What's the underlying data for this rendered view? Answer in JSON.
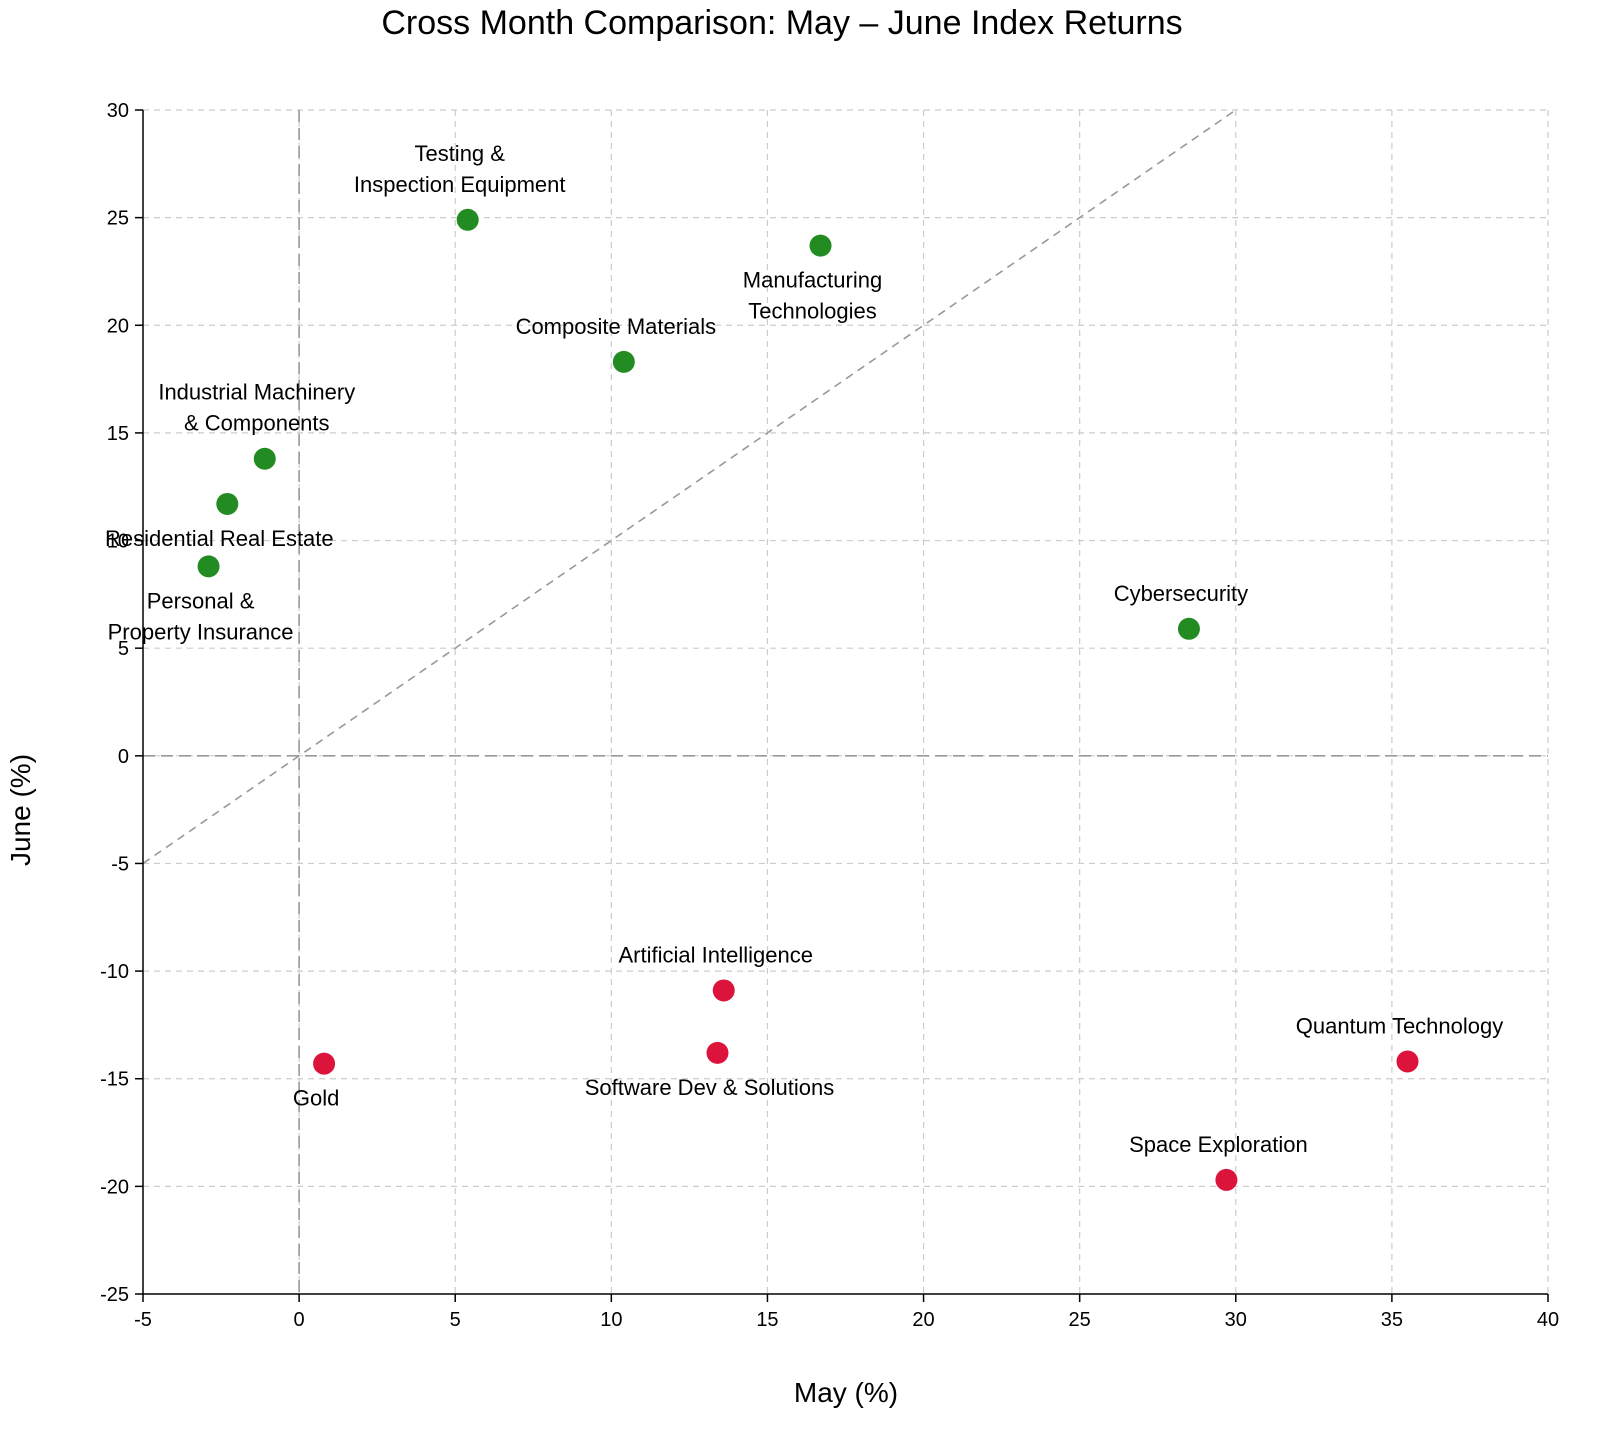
{
  "chart_data": {
    "type": "scatter",
    "title": "Cross Month Comparison: May – June Index Returns",
    "xlabel": "May (%)",
    "ylabel": "June (%)",
    "xlim": [
      -5,
      40
    ],
    "ylim": [
      -25,
      30
    ],
    "xticks": [
      -5,
      0,
      5,
      10,
      15,
      20,
      25,
      30,
      35,
      40
    ],
    "yticks": [
      -25,
      -20,
      -15,
      -10,
      -5,
      0,
      5,
      10,
      15,
      20,
      25,
      30
    ],
    "grid": true,
    "reference_lines": [
      "y = x",
      "x = 0",
      "y = 0"
    ],
    "colors": {
      "positive_june": "#228B22",
      "negative_june": "#DC143C"
    },
    "points": [
      {
        "label": "Testing & Inspection Equipment",
        "x": 5.4,
        "y": 24.9,
        "label_pos": "above"
      },
      {
        "label": "Manufacturing Technologies",
        "x": 16.7,
        "y": 23.7,
        "label_pos": "below"
      },
      {
        "label": "Composite Materials",
        "x": 10.4,
        "y": 18.3,
        "label_pos": "above"
      },
      {
        "label": "Industrial Machinery & Components",
        "x": -1.1,
        "y": 13.8,
        "label_pos": "above"
      },
      {
        "label": "Residential Real Estate",
        "x": -2.3,
        "y": 11.7,
        "label_pos": "below"
      },
      {
        "label": "Personal & Property Insurance",
        "x": -2.9,
        "y": 8.8,
        "label_pos": "below"
      },
      {
        "label": "Cybersecurity",
        "x": 28.5,
        "y": 5.9,
        "label_pos": "above"
      },
      {
        "label": "Artificial Intelligence",
        "x": 13.6,
        "y": -10.9,
        "label_pos": "above"
      },
      {
        "label": "Software Dev & Solutions",
        "x": 13.4,
        "y": -13.8,
        "label_pos": "below"
      },
      {
        "label": "Gold",
        "x": 0.8,
        "y": -14.3,
        "label_pos": "below"
      },
      {
        "label": "Quantum Technology",
        "x": 35.5,
        "y": -14.2,
        "label_pos": "above"
      },
      {
        "label": "Space Exploration",
        "x": 29.7,
        "y": -19.7,
        "label_pos": "above"
      }
    ]
  }
}
